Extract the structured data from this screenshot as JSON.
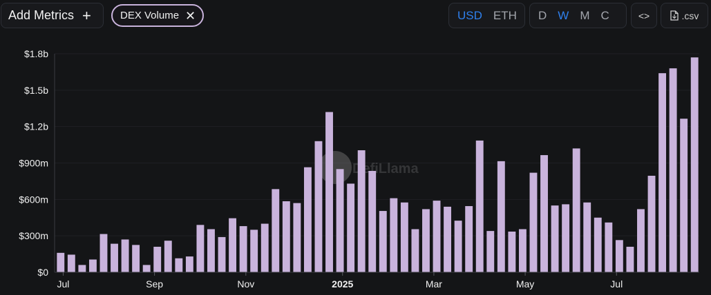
{
  "toolbar": {
    "add_metrics_label": "Add Metrics",
    "add_metrics_icon": "plus-icon",
    "metric_chip_label": "DEX Volume",
    "metric_chip_icon": "close-icon",
    "currency_options": [
      "USD",
      "ETH"
    ],
    "currency_selected": "USD",
    "period_options": [
      "D",
      "W",
      "M",
      "C"
    ],
    "period_selected": "W",
    "embed_icon": "code-embed-icon",
    "csv_label": ".csv",
    "csv_icon": "file-icon",
    "active_color": "#2f80ed"
  },
  "watermark": {
    "text": "DefiLlama"
  },
  "chart_data": {
    "type": "bar",
    "bar_color": "#c9b3dc",
    "ylim": [
      0,
      1800000000
    ],
    "y_ticks": [
      0,
      300000000,
      600000000,
      900000000,
      1200000000,
      1500000000,
      1800000000
    ],
    "y_tick_labels": [
      "$0",
      "$300m",
      "$600m",
      "$900m",
      "$1.2b",
      "$1.5b",
      "$1.8b"
    ],
    "x_ticks": [
      {
        "label": "Jul",
        "index": 0.3,
        "bold": false
      },
      {
        "label": "Sep",
        "index": 8.8,
        "bold": false
      },
      {
        "label": "Nov",
        "index": 17.3,
        "bold": false
      },
      {
        "label": "2025",
        "index": 26.3,
        "bold": true
      },
      {
        "label": "Mar",
        "index": 34.8,
        "bold": false
      },
      {
        "label": "May",
        "index": 43.3,
        "bold": false
      },
      {
        "label": "Jul",
        "index": 51.8,
        "bold": false
      }
    ],
    "values": [
      160000000,
      145000000,
      60000000,
      105000000,
      315000000,
      235000000,
      270000000,
      225000000,
      60000000,
      210000000,
      260000000,
      115000000,
      130000000,
      390000000,
      355000000,
      290000000,
      445000000,
      380000000,
      350000000,
      400000000,
      685000000,
      585000000,
      570000000,
      865000000,
      1080000000,
      1320000000,
      850000000,
      730000000,
      1005000000,
      835000000,
      505000000,
      610000000,
      575000000,
      355000000,
      520000000,
      590000000,
      540000000,
      425000000,
      545000000,
      1085000000,
      340000000,
      915000000,
      335000000,
      355000000,
      820000000,
      965000000,
      550000000,
      560000000,
      1020000000,
      575000000,
      450000000,
      410000000,
      265000000,
      210000000,
      520000000,
      795000000,
      1640000000,
      1680000000,
      1265000000,
      1770000000
    ]
  }
}
